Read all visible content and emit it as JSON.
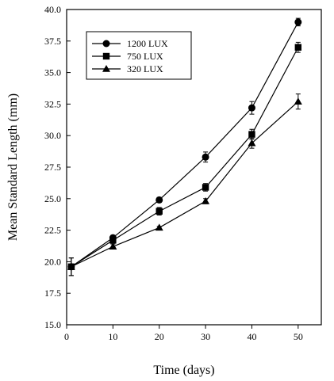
{
  "chart_data": {
    "type": "line",
    "xlabel": "Time (days)",
    "ylabel": "Mean Standard Length (mm)",
    "xlim": [
      0,
      55
    ],
    "ylim": [
      15.0,
      40.0
    ],
    "x_ticks": [
      "0",
      "10",
      "20",
      "30",
      "40",
      "50"
    ],
    "y_ticks": [
      "15.0",
      "17.5",
      "20.0",
      "22.5",
      "25.0",
      "27.5",
      "30.0",
      "32.5",
      "35.0",
      "37.5",
      "40.0"
    ],
    "x_tick_values": [
      0,
      10,
      20,
      30,
      40,
      50
    ],
    "y_tick_values": [
      15.0,
      17.5,
      20.0,
      22.5,
      25.0,
      27.5,
      30.0,
      32.5,
      35.0,
      37.5,
      40.0
    ],
    "x": [
      1,
      10,
      20,
      30,
      40,
      50
    ],
    "legend_position": "top-left",
    "grid": false,
    "series": [
      {
        "name": "1200 LUX",
        "marker": "circle",
        "values": [
          19.6,
          21.9,
          24.9,
          28.3,
          32.2,
          39.0
        ],
        "errors": [
          0.7,
          0.2,
          0.2,
          0.4,
          0.5,
          0.3
        ]
      },
      {
        "name": "750 LUX",
        "marker": "square",
        "values": [
          19.6,
          21.7,
          24.0,
          25.9,
          30.1,
          37.0
        ],
        "errors": [
          0.7,
          0.2,
          0.3,
          0.3,
          0.4,
          0.4
        ]
      },
      {
        "name": "320 LUX",
        "marker": "triangle",
        "values": [
          19.6,
          21.2,
          22.7,
          24.8,
          29.4,
          32.7
        ],
        "errors": [
          0.7,
          0.2,
          0.1,
          0.2,
          0.4,
          0.6
        ]
      }
    ]
  }
}
